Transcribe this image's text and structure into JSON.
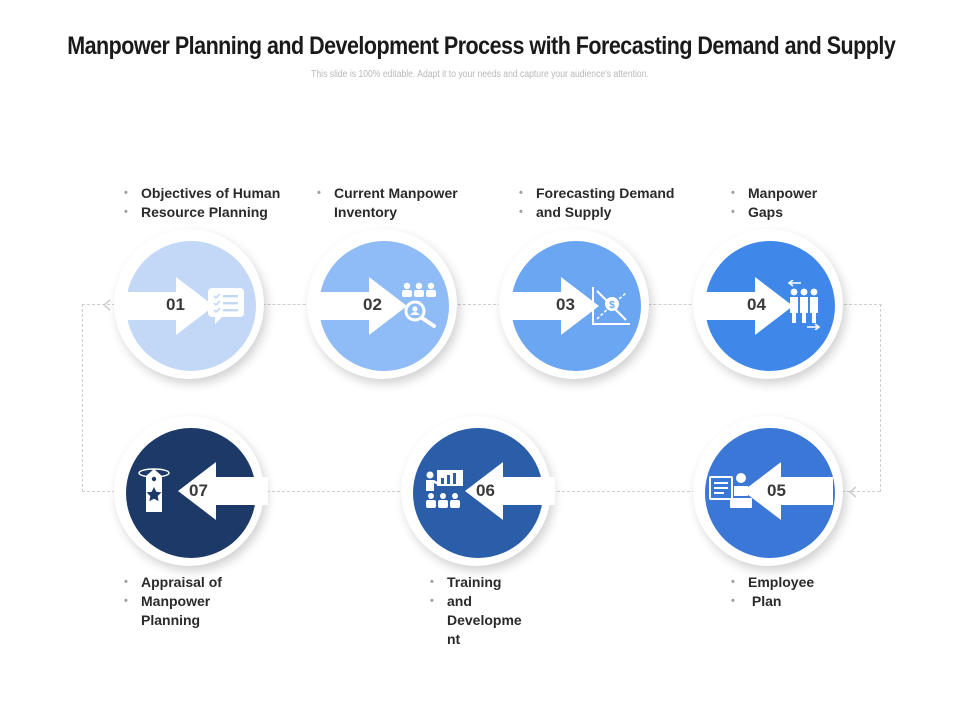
{
  "header": {
    "title": "Manpower Planning and Development Process with Forecasting Demand and Supply",
    "subtitle": "This slide is 100% editable. Adapt it to your needs and capture your audience's attention."
  },
  "colors": {
    "step01": "#c3d8f7",
    "step02": "#8fbcf6",
    "step03": "#6aa6f2",
    "step04": "#3f88ea",
    "step05": "#3a77d6",
    "step06": "#2a5ea9",
    "step07": "#1d3967",
    "arrow": "#ffffff",
    "connector": "#cfcfcf"
  },
  "steps": [
    {
      "number": "01",
      "icon": "checklist-icon",
      "lines": [
        "Objectives of Human",
        "Resource Planning"
      ]
    },
    {
      "number": "02",
      "icon": "people-search-icon",
      "lines": [
        "Current Manpower Inventory"
      ]
    },
    {
      "number": "03",
      "icon": "dollar-trend-chart-icon",
      "lines": [
        "Forecasting Demand",
        "and Supply"
      ]
    },
    {
      "number": "04",
      "icon": "team-transfer-icon",
      "lines": [
        "Manpower",
        "Gaps"
      ]
    },
    {
      "number": "05",
      "icon": "employee-plan-icon",
      "lines": [
        "Employee",
        " Plan"
      ]
    },
    {
      "number": "06",
      "icon": "training-presentation-icon",
      "lines": [
        "Training",
        "and Developme nt"
      ]
    },
    {
      "number": "07",
      "icon": "star-tag-icon",
      "lines": [
        "Appraisal of",
        "Manpower Planning"
      ]
    }
  ]
}
